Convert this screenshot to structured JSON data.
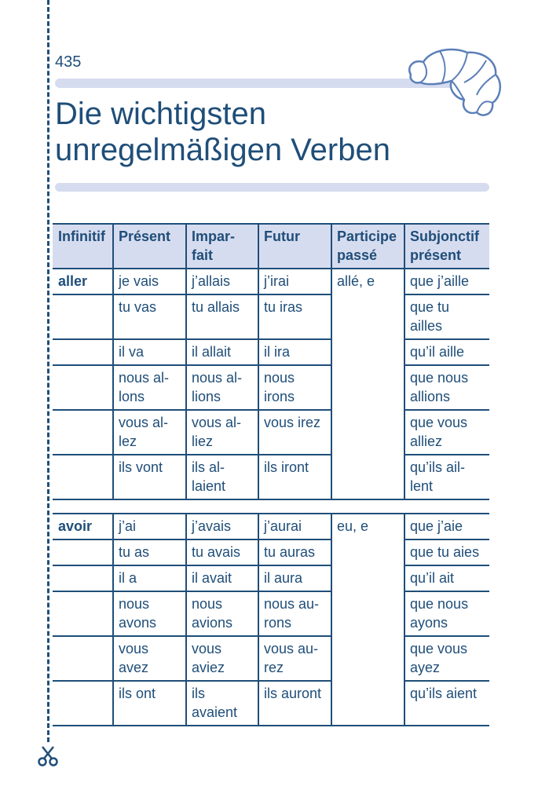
{
  "page_number": "435",
  "title": {
    "line1": "Die wichtigsten",
    "line2": "unregelmäßigen Verben"
  },
  "decor": {
    "illustration_icon": "croissant-icon",
    "cut_icon": "scissors-icon",
    "accent_color": "#1f4e79",
    "band_color": "#d6dcef"
  },
  "table": {
    "headers": [
      "Infinitif",
      "Présent",
      "Impar-\nfait",
      "Futur",
      "Participe\npassé",
      "Subjonctif\nprésent"
    ],
    "verbs": [
      {
        "infinitif": "aller",
        "participe": "allé, e",
        "rows": [
          [
            "je vais",
            "j’allais",
            "j’irai",
            "que j’aille"
          ],
          [
            "tu vas",
            "tu allais",
            "tu iras",
            "que tu\nailles"
          ],
          [
            "il va",
            "il allait",
            "il ira",
            "qu’il aille"
          ],
          [
            "nous al-\nlons",
            "nous al-\nlions",
            "nous\nirons",
            "que nous\nallions"
          ],
          [
            "vous al-\nlez",
            "vous al-\nliez",
            "vous irez",
            "que vous\nalliez"
          ],
          [
            "ils vont",
            "ils al-\nlaient",
            "ils iront",
            "qu’ils ail-\nlent"
          ]
        ]
      },
      {
        "infinitif": "avoir",
        "participe": "eu, e",
        "rows": [
          [
            "j’ai",
            "j’avais",
            "j’aurai",
            "que j’aie"
          ],
          [
            "tu as",
            "tu avais",
            "tu auras",
            "que tu aies"
          ],
          [
            "il a",
            "il avait",
            "il aura",
            "qu’il ait"
          ],
          [
            "nous\navons",
            "nous\navions",
            "nous au-\nrons",
            "que nous\nayons"
          ],
          [
            "vous\navez",
            "vous\naviez",
            "vous au-\nrez",
            "que vous\nayez"
          ],
          [
            "ils ont",
            "ils\navaient",
            "ils auront",
            "qu’ils aient"
          ]
        ]
      }
    ]
  }
}
